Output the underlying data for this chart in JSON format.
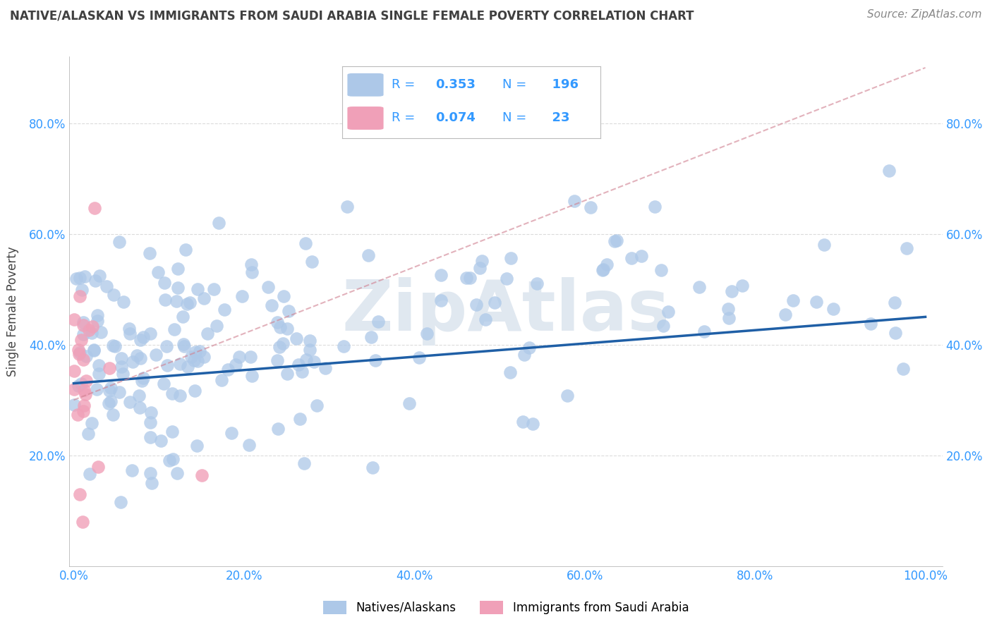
{
  "title": "NATIVE/ALASKAN VS IMMIGRANTS FROM SAUDI ARABIA SINGLE FEMALE POVERTY CORRELATION CHART",
  "source": "Source: ZipAtlas.com",
  "ylabel_label": "Single Female Poverty",
  "legend_label1": "Natives/Alaskans",
  "legend_label2": "Immigrants from Saudi Arabia",
  "R_blue": 0.353,
  "N_blue": 196,
  "R_pink": 0.074,
  "N_pink": 23,
  "blue_color": "#adc8e8",
  "blue_line_color": "#1f5fa6",
  "pink_color": "#f0a0b8",
  "pink_line_color": "#d08090",
  "axis_color": "#3399ff",
  "title_color": "#404040",
  "grid_color": "#cccccc",
  "background_color": "#ffffff",
  "watermark_text": "ZipAtlas",
  "watermark_color": "#e0e8f0",
  "blue_seed": 42,
  "pink_seed": 99
}
